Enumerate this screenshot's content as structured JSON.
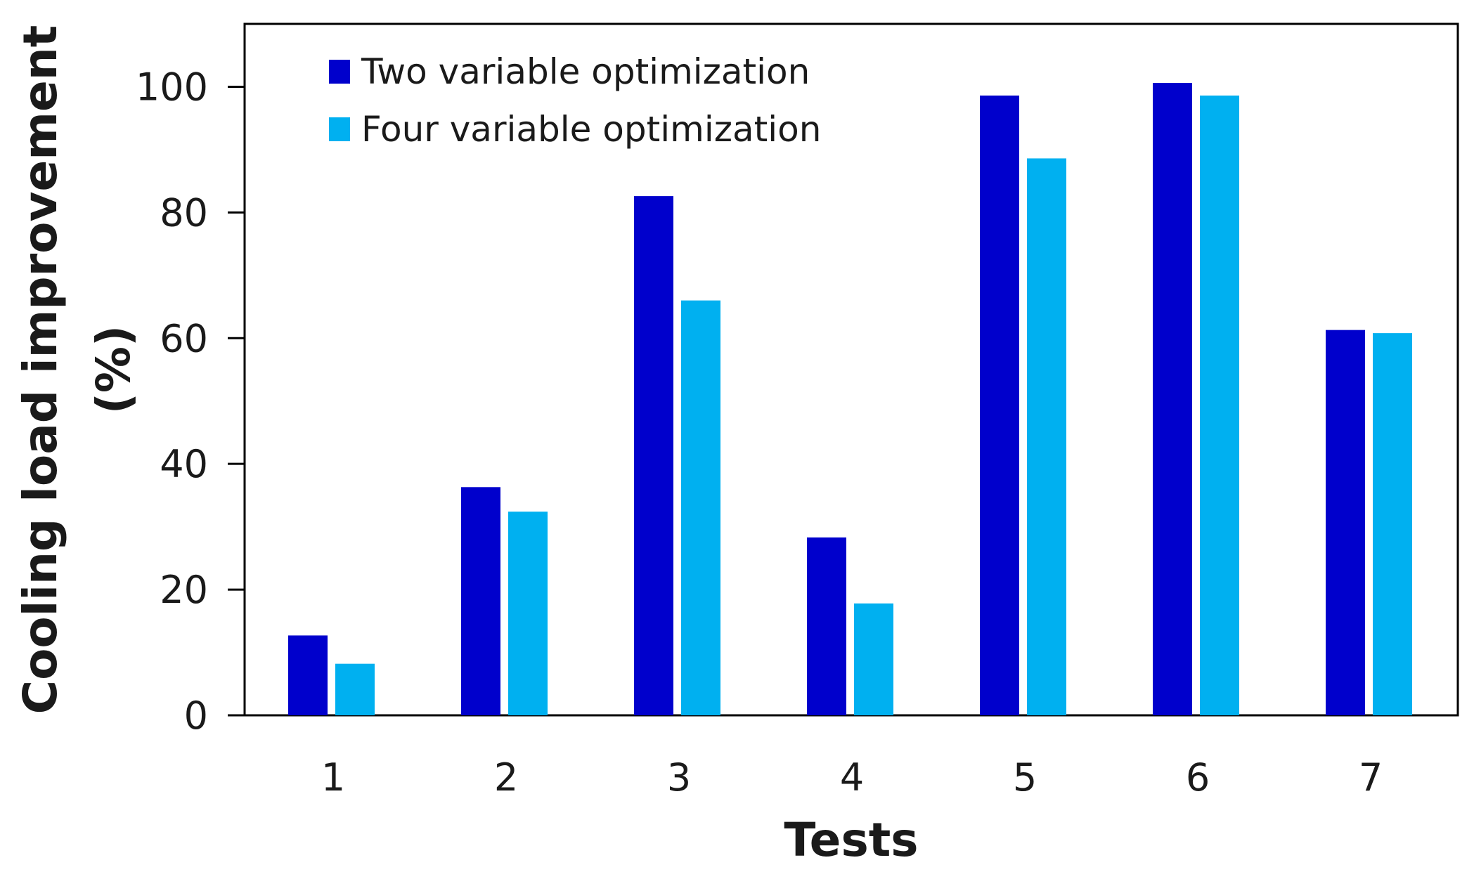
{
  "chart_data": {
    "type": "bar",
    "title": "",
    "xlabel": "Tests",
    "ylabel_lines": [
      "Cooling load improvement",
      "(%)"
    ],
    "categories": [
      "1",
      "2",
      "3",
      "4",
      "5",
      "6",
      "7"
    ],
    "series": [
      {
        "name": "Two variable optimization",
        "color": "#0000CC",
        "values": [
          12.7,
          36.3,
          82.6,
          28.3,
          98.6,
          100.6,
          61.3
        ]
      },
      {
        "name": "Four variable optimization",
        "color": "#00B0F0",
        "values": [
          8.2,
          32.4,
          66.0,
          17.8,
          88.6,
          98.6,
          60.8
        ]
      }
    ],
    "ylim": [
      0,
      110
    ],
    "yticks": [
      "0",
      "20",
      "40",
      "60",
      "80",
      "100"
    ],
    "ytick_values": [
      0,
      20,
      40,
      60,
      80,
      100
    ],
    "grid": false,
    "legend_position": "top-left"
  }
}
